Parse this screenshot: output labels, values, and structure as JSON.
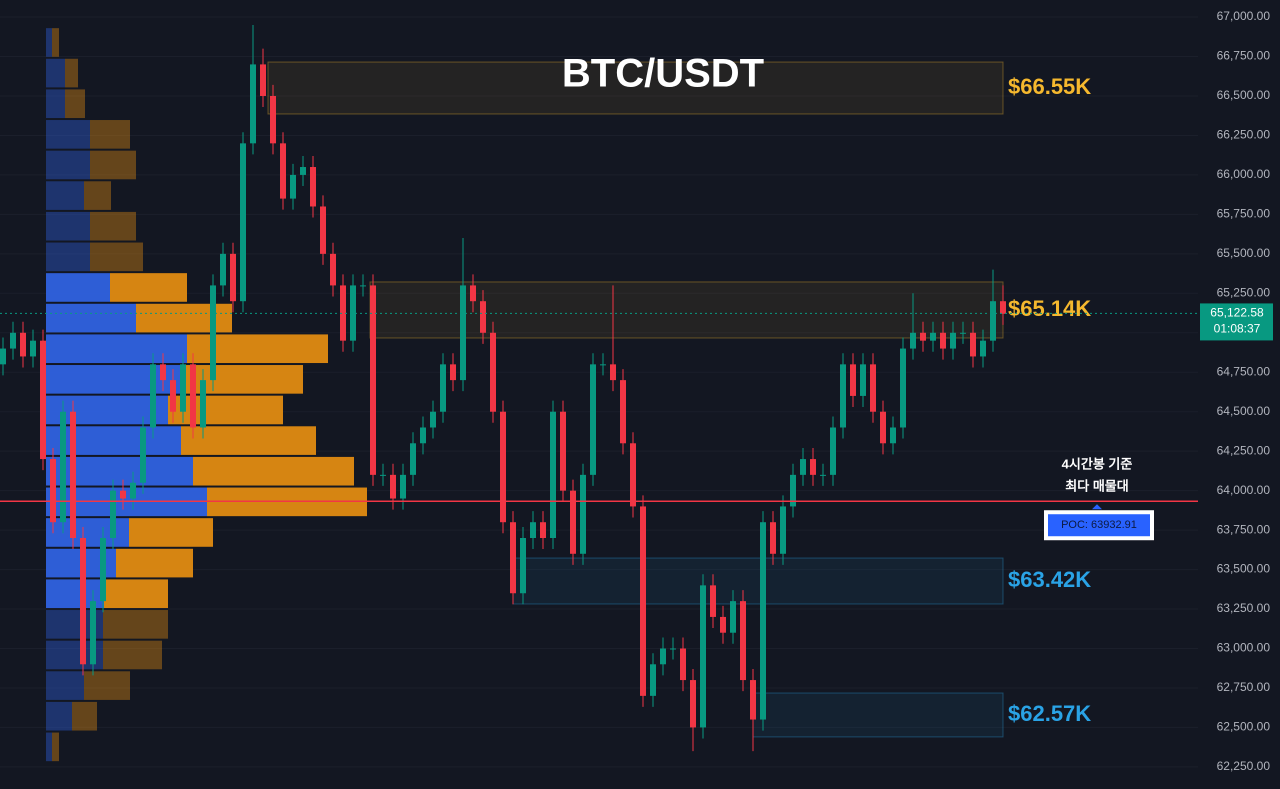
{
  "chart_data": {
    "type": "candlestick",
    "title": "BTC/USDT",
    "ylim": [
      62110,
      67108
    ],
    "yticks": [
      {
        "value": 62250,
        "label": "62,250.00"
      },
      {
        "value": 62500,
        "label": "62,500.00"
      },
      {
        "value": 62750,
        "label": "62,750.00"
      },
      {
        "value": 63000,
        "label": "63,000.00"
      },
      {
        "value": 63250,
        "label": "63,250.00"
      },
      {
        "value": 63500,
        "label": "63,500.00"
      },
      {
        "value": 63750,
        "label": "63,750.00"
      },
      {
        "value": 64000,
        "label": "64,000.00"
      },
      {
        "value": 64250,
        "label": "64,250.00"
      },
      {
        "value": 64500,
        "label": "64,500.00"
      },
      {
        "value": 64750,
        "label": "64,750.00"
      },
      {
        "value": 65000,
        "label": "65,000.00"
      },
      {
        "value": 65250,
        "label": "65,250.00"
      },
      {
        "value": 65500,
        "label": "65,500.00"
      },
      {
        "value": 65750,
        "label": "65,750.00"
      },
      {
        "value": 66000,
        "label": "66,000.00"
      },
      {
        "value": 66250,
        "label": "66,250.00"
      },
      {
        "value": 66500,
        "label": "66,500.00"
      },
      {
        "value": 66750,
        "label": "66,750.00"
      },
      {
        "value": 67000,
        "label": "67,000.00"
      }
    ],
    "grid": true,
    "up_color": "#089981",
    "down_color": "#f23645",
    "open": [
      64800,
      64900,
      65000,
      64850,
      64950,
      64200,
      63800,
      64500,
      63700,
      62900,
      63300,
      63700,
      64000,
      63950,
      64050,
      64400,
      64800,
      64700,
      64500,
      64800,
      64400,
      64700,
      65300,
      65500,
      65200,
      66200,
      66700,
      66500,
      66200,
      65850,
      66000,
      66050,
      65800,
      65500,
      65300,
      64950,
      65300,
      65300,
      64100,
      64100,
      63950,
      64100,
      64300,
      64400,
      64500,
      64800,
      64700,
      65300,
      65200,
      65000,
      64500,
      63800,
      63350,
      63700,
      63800,
      63700,
      64500,
      64000,
      63600,
      64100,
      64800,
      64800,
      64700,
      64300,
      63900,
      62700,
      62900,
      63000,
      63000,
      62800,
      62500,
      63400,
      63200,
      63100,
      63300,
      62800,
      62550,
      63800,
      63600,
      63900,
      64100,
      64200,
      64100,
      64100,
      64400,
      64800,
      64600,
      64800,
      64500,
      64300,
      64400,
      64900,
      65000,
      64950,
      65000,
      64900,
      65000,
      65000,
      64850,
      64950,
      65200
    ],
    "high": [
      64970,
      65070,
      65070,
      65020,
      65020,
      64270,
      64570,
      64570,
      63770,
      63370,
      63770,
      64070,
      64070,
      64120,
      64470,
      64870,
      64870,
      64770,
      64870,
      64870,
      64770,
      65370,
      65570,
      65570,
      66270,
      66950,
      66800,
      66570,
      66270,
      66070,
      66120,
      66120,
      65870,
      65570,
      65370,
      65370,
      65370,
      65370,
      64170,
      64170,
      64170,
      64370,
      64470,
      64570,
      64870,
      64870,
      65600,
      65370,
      65270,
      65070,
      64570,
      63870,
      63770,
      63870,
      63870,
      64570,
      64570,
      64070,
      64170,
      64870,
      64870,
      65300,
      64770,
      64370,
      63970,
      62970,
      63070,
      63070,
      63070,
      62870,
      63470,
      63470,
      63270,
      63370,
      63370,
      62870,
      63870,
      63870,
      63970,
      64170,
      64270,
      64270,
      64170,
      64470,
      64870,
      64870,
      64870,
      64870,
      64570,
      64470,
      64970,
      65250,
      65070,
      65070,
      65070,
      65070,
      65070,
      65070,
      65020,
      65400,
      65300
    ],
    "low": [
      64730,
      64830,
      64780,
      64780,
      64130,
      63730,
      63730,
      63630,
      62830,
      62830,
      63230,
      63630,
      63880,
      63880,
      63980,
      64330,
      64630,
      64430,
      64430,
      64330,
      64330,
      64630,
      65230,
      65130,
      65130,
      66130,
      66430,
      66130,
      65780,
      65780,
      65930,
      65730,
      65430,
      65230,
      64880,
      64880,
      65230,
      64030,
      64030,
      63880,
      63880,
      64030,
      64230,
      64330,
      64430,
      64630,
      64630,
      65130,
      64930,
      64430,
      63730,
      63280,
      63280,
      63630,
      63630,
      63630,
      63930,
      63530,
      63530,
      64030,
      64730,
      64630,
      64230,
      63830,
      62630,
      62630,
      62830,
      62930,
      62730,
      62350,
      62430,
      63130,
      63030,
      63030,
      62730,
      62350,
      62480,
      63530,
      63530,
      63830,
      64030,
      64030,
      64030,
      64030,
      64330,
      64530,
      64530,
      64430,
      64230,
      64230,
      64330,
      64830,
      64880,
      64880,
      64830,
      64830,
      64930,
      64780,
      64780,
      64880,
      65050
    ],
    "close": [
      64900,
      65000,
      64850,
      64950,
      64200,
      63800,
      64500,
      63700,
      62900,
      63300,
      63700,
      64000,
      63950,
      64050,
      64400,
      64800,
      64700,
      64500,
      64800,
      64400,
      64700,
      65300,
      65500,
      65200,
      66200,
      66700,
      66500,
      66200,
      65850,
      66000,
      66050,
      65800,
      65500,
      65300,
      64950,
      65300,
      65300,
      64100,
      64100,
      63950,
      64100,
      64300,
      64400,
      64500,
      64800,
      64700,
      65300,
      65200,
      65000,
      64500,
      63800,
      63350,
      63700,
      63800,
      63700,
      64500,
      64000,
      63600,
      64100,
      64800,
      64800,
      64700,
      64300,
      63900,
      62700,
      62900,
      63000,
      63000,
      62800,
      62500,
      63400,
      63200,
      63100,
      63300,
      62800,
      62550,
      63800,
      63600,
      63900,
      64100,
      64200,
      64100,
      64100,
      64400,
      64800,
      64600,
      64800,
      64500,
      64300,
      64400,
      64900,
      65000,
      64950,
      65000,
      64900,
      65000,
      65000,
      64850,
      64950,
      65200,
      65120
    ],
    "zones": [
      {
        "range": [
          66386,
          66715
        ],
        "start_index": 26.5,
        "label": "$66.55K",
        "color": "#f5b82e"
      },
      {
        "range": [
          64967,
          65322
        ],
        "start_index": 36.7,
        "label": "$65.14K",
        "color": "#f5b82e"
      },
      {
        "range": [
          63282,
          63573
        ],
        "start_index": 51,
        "label": "$63.42K",
        "color": "#2aa3e6"
      },
      {
        "range": [
          62440,
          62718
        ],
        "start_index": 75,
        "label": "$62.57K",
        "color": "#2aa3e6"
      }
    ],
    "poc": {
      "value": 63932.91,
      "label": "POC: 63932.91",
      "note": [
        "4시간봉 기준",
        "최다 매물대"
      ],
      "color": "#f23645"
    },
    "last_price": {
      "value": 65122.58,
      "label": "65,122.58",
      "countdown": "01:08:37"
    },
    "volume_profile": {
      "bins": [
        62280,
        62474,
        62668,
        62862,
        63056,
        63250,
        63444,
        63638,
        63832,
        64026,
        64220,
        64414,
        64608,
        64802,
        64996,
        65190,
        65384,
        65578,
        65772,
        65966,
        66160,
        66354,
        66548,
        66742,
        66936
      ],
      "buy": [
        6,
        26,
        38,
        57,
        57,
        58,
        70,
        83,
        161,
        147,
        135,
        122,
        135,
        141,
        90,
        64,
        44,
        44,
        38,
        44,
        44,
        19,
        19,
        6
      ],
      "sell": [
        7,
        25,
        46,
        59,
        65,
        64,
        77,
        84,
        160,
        161,
        135,
        115,
        122,
        141,
        96,
        77,
        53,
        46,
        27,
        46,
        40,
        20,
        13,
        7
      ],
      "buy_color": "#2f62e0",
      "sell_color": "#e08b12",
      "value_area": [
        63250,
        65384
      ]
    }
  }
}
